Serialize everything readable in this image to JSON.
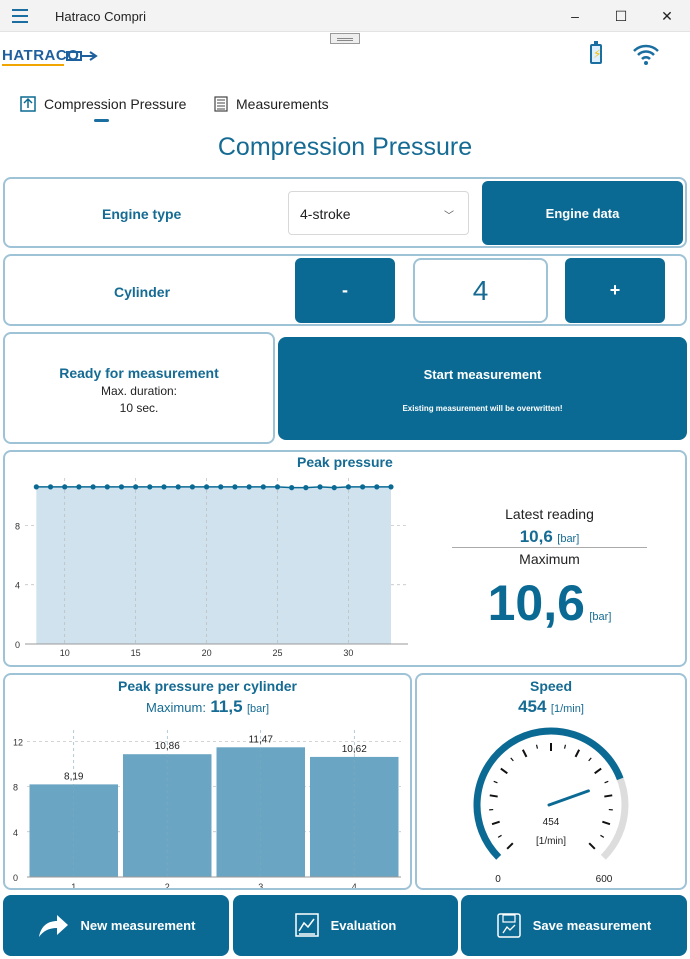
{
  "window": {
    "title": "Hatraco Compri",
    "minimize": "–",
    "maximize": "☐",
    "close": "✕"
  },
  "brand": {
    "logo_text": "HATRACO",
    "battery_icon": "battery-charging-icon",
    "wifi_icon": "wifi-icon"
  },
  "tabs": [
    {
      "label": "Compression Pressure",
      "icon": "compression-icon",
      "active": true
    },
    {
      "label": "Measurements",
      "icon": "list-icon",
      "active": false
    }
  ],
  "page_title": "Compression Pressure",
  "engine": {
    "label": "Engine type",
    "selected": "4-stroke",
    "button": "Engine data"
  },
  "cylinder": {
    "label": "Cylinder",
    "minus": "-",
    "value": "4",
    "plus": "+"
  },
  "status": {
    "title": "Ready for measurement",
    "duration_label": "Max. duration:",
    "duration_value": "10 sec.",
    "start_button": "Start measurement",
    "warning": "Existing measurement will be overwritten!"
  },
  "peak": {
    "title": "Peak pressure",
    "latest_label": "Latest reading",
    "latest_value": "10,6",
    "unit": "[bar]",
    "max_label": "Maximum",
    "max_value": "10,6"
  },
  "chart_data": [
    {
      "type": "area",
      "title": "Peak pressure",
      "x": [
        8,
        9,
        10,
        11,
        12,
        13,
        14,
        15,
        16,
        17,
        18,
        19,
        20,
        21,
        22,
        23,
        24,
        25,
        26,
        27,
        28,
        29,
        30,
        31,
        32,
        33
      ],
      "values": [
        10.6,
        10.6,
        10.6,
        10.6,
        10.6,
        10.6,
        10.6,
        10.6,
        10.6,
        10.6,
        10.6,
        10.6,
        10.6,
        10.6,
        10.6,
        10.6,
        10.6,
        10.6,
        10.55,
        10.55,
        10.6,
        10.55,
        10.6,
        10.6,
        10.6,
        10.6
      ],
      "xticks": [
        10,
        15,
        20,
        25,
        30
      ],
      "yticks": [
        0,
        4,
        8
      ],
      "xlim": [
        7.2,
        34.2
      ],
      "ylim": [
        0,
        11.2
      ],
      "xlabel": "",
      "ylabel": ""
    },
    {
      "type": "bar",
      "title": "Peak pressure per cylinder",
      "max_label": "Maximum:",
      "max_value": "11,5",
      "unit": "[bar]",
      "categories": [
        "1",
        "2",
        "3",
        "4"
      ],
      "values": [
        8.19,
        10.86,
        11.47,
        10.62
      ],
      "value_labels": [
        "8,19",
        "10,86",
        "11,47",
        "10,62"
      ],
      "yticks": [
        0,
        4,
        8,
        12
      ],
      "ylim": [
        0,
        13
      ],
      "xlabel": "",
      "ylabel": ""
    },
    {
      "type": "gauge",
      "title": "Speed",
      "value": 454,
      "value_text": "454",
      "unit": "[1/min]",
      "min": 0,
      "max": 600,
      "min_label": "0",
      "max_label": "600"
    }
  ],
  "actions": {
    "new": "New measurement",
    "evaluation": "Evaluation",
    "save": "Save measurement"
  },
  "colors": {
    "accent": "#0b6a94",
    "border": "#9fc3d6",
    "area": "#cfe2ee",
    "bar": "#6aa6c3",
    "gauge_track": "#dddddd"
  }
}
